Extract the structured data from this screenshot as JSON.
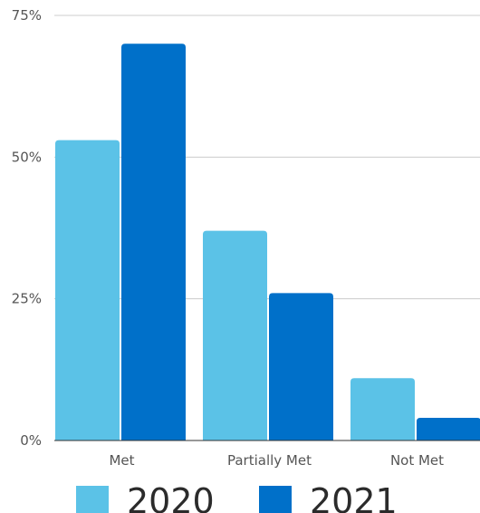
{
  "chart_data": {
    "type": "bar",
    "categories": [
      "Met",
      "Partially Met",
      "Not Met"
    ],
    "series": [
      {
        "name": "2020",
        "values": [
          53,
          37,
          11
        ],
        "color": "#5bc2e7"
      },
      {
        "name": "2021",
        "values": [
          70,
          26,
          4
        ],
        "color": "#0070c9"
      }
    ],
    "ylim": [
      0,
      75
    ],
    "yticks": [
      0,
      25,
      50,
      75
    ],
    "ytick_labels": [
      "0%",
      "25%",
      "50%",
      "75%"
    ],
    "grid": true,
    "legend_position": "bottom",
    "axis_color": "#333333",
    "grid_color": "#cccccc"
  }
}
